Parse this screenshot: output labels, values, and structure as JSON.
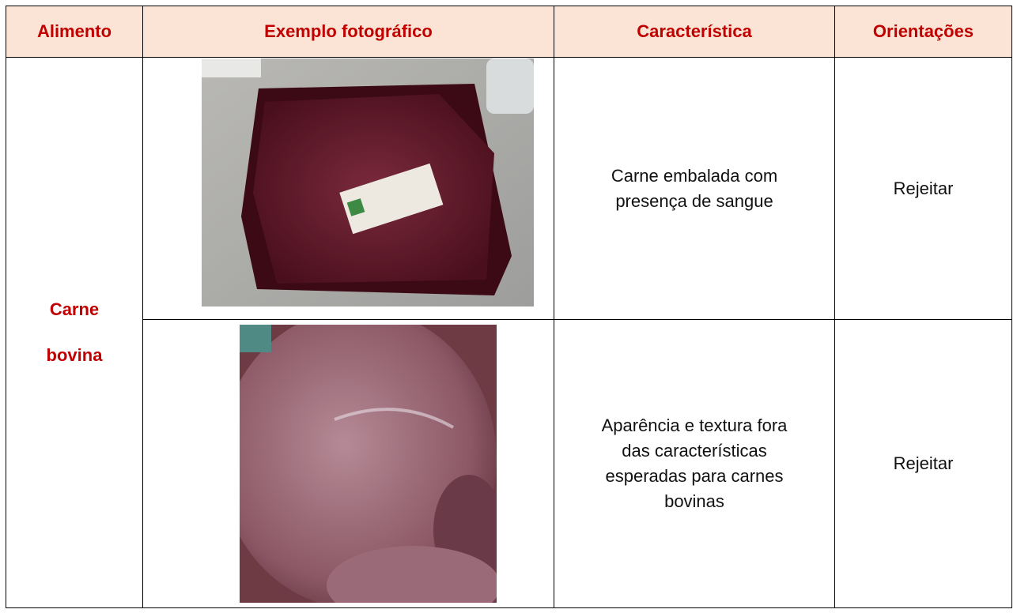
{
  "table": {
    "header": [
      "Alimento",
      "Exemplo fotográfico",
      "Característica",
      "Orientações"
    ],
    "food": [
      "Carne",
      "bovina"
    ],
    "rows": [
      {
        "characteristic": [
          "Carne embalada com",
          "presença de sangue"
        ],
        "guidance": "Rejeitar"
      },
      {
        "characteristic": [
          "Aparência e textura fora",
          "das características",
          "esperadas para carnes",
          "bovinas"
        ],
        "guidance": "Rejeitar"
      }
    ]
  }
}
